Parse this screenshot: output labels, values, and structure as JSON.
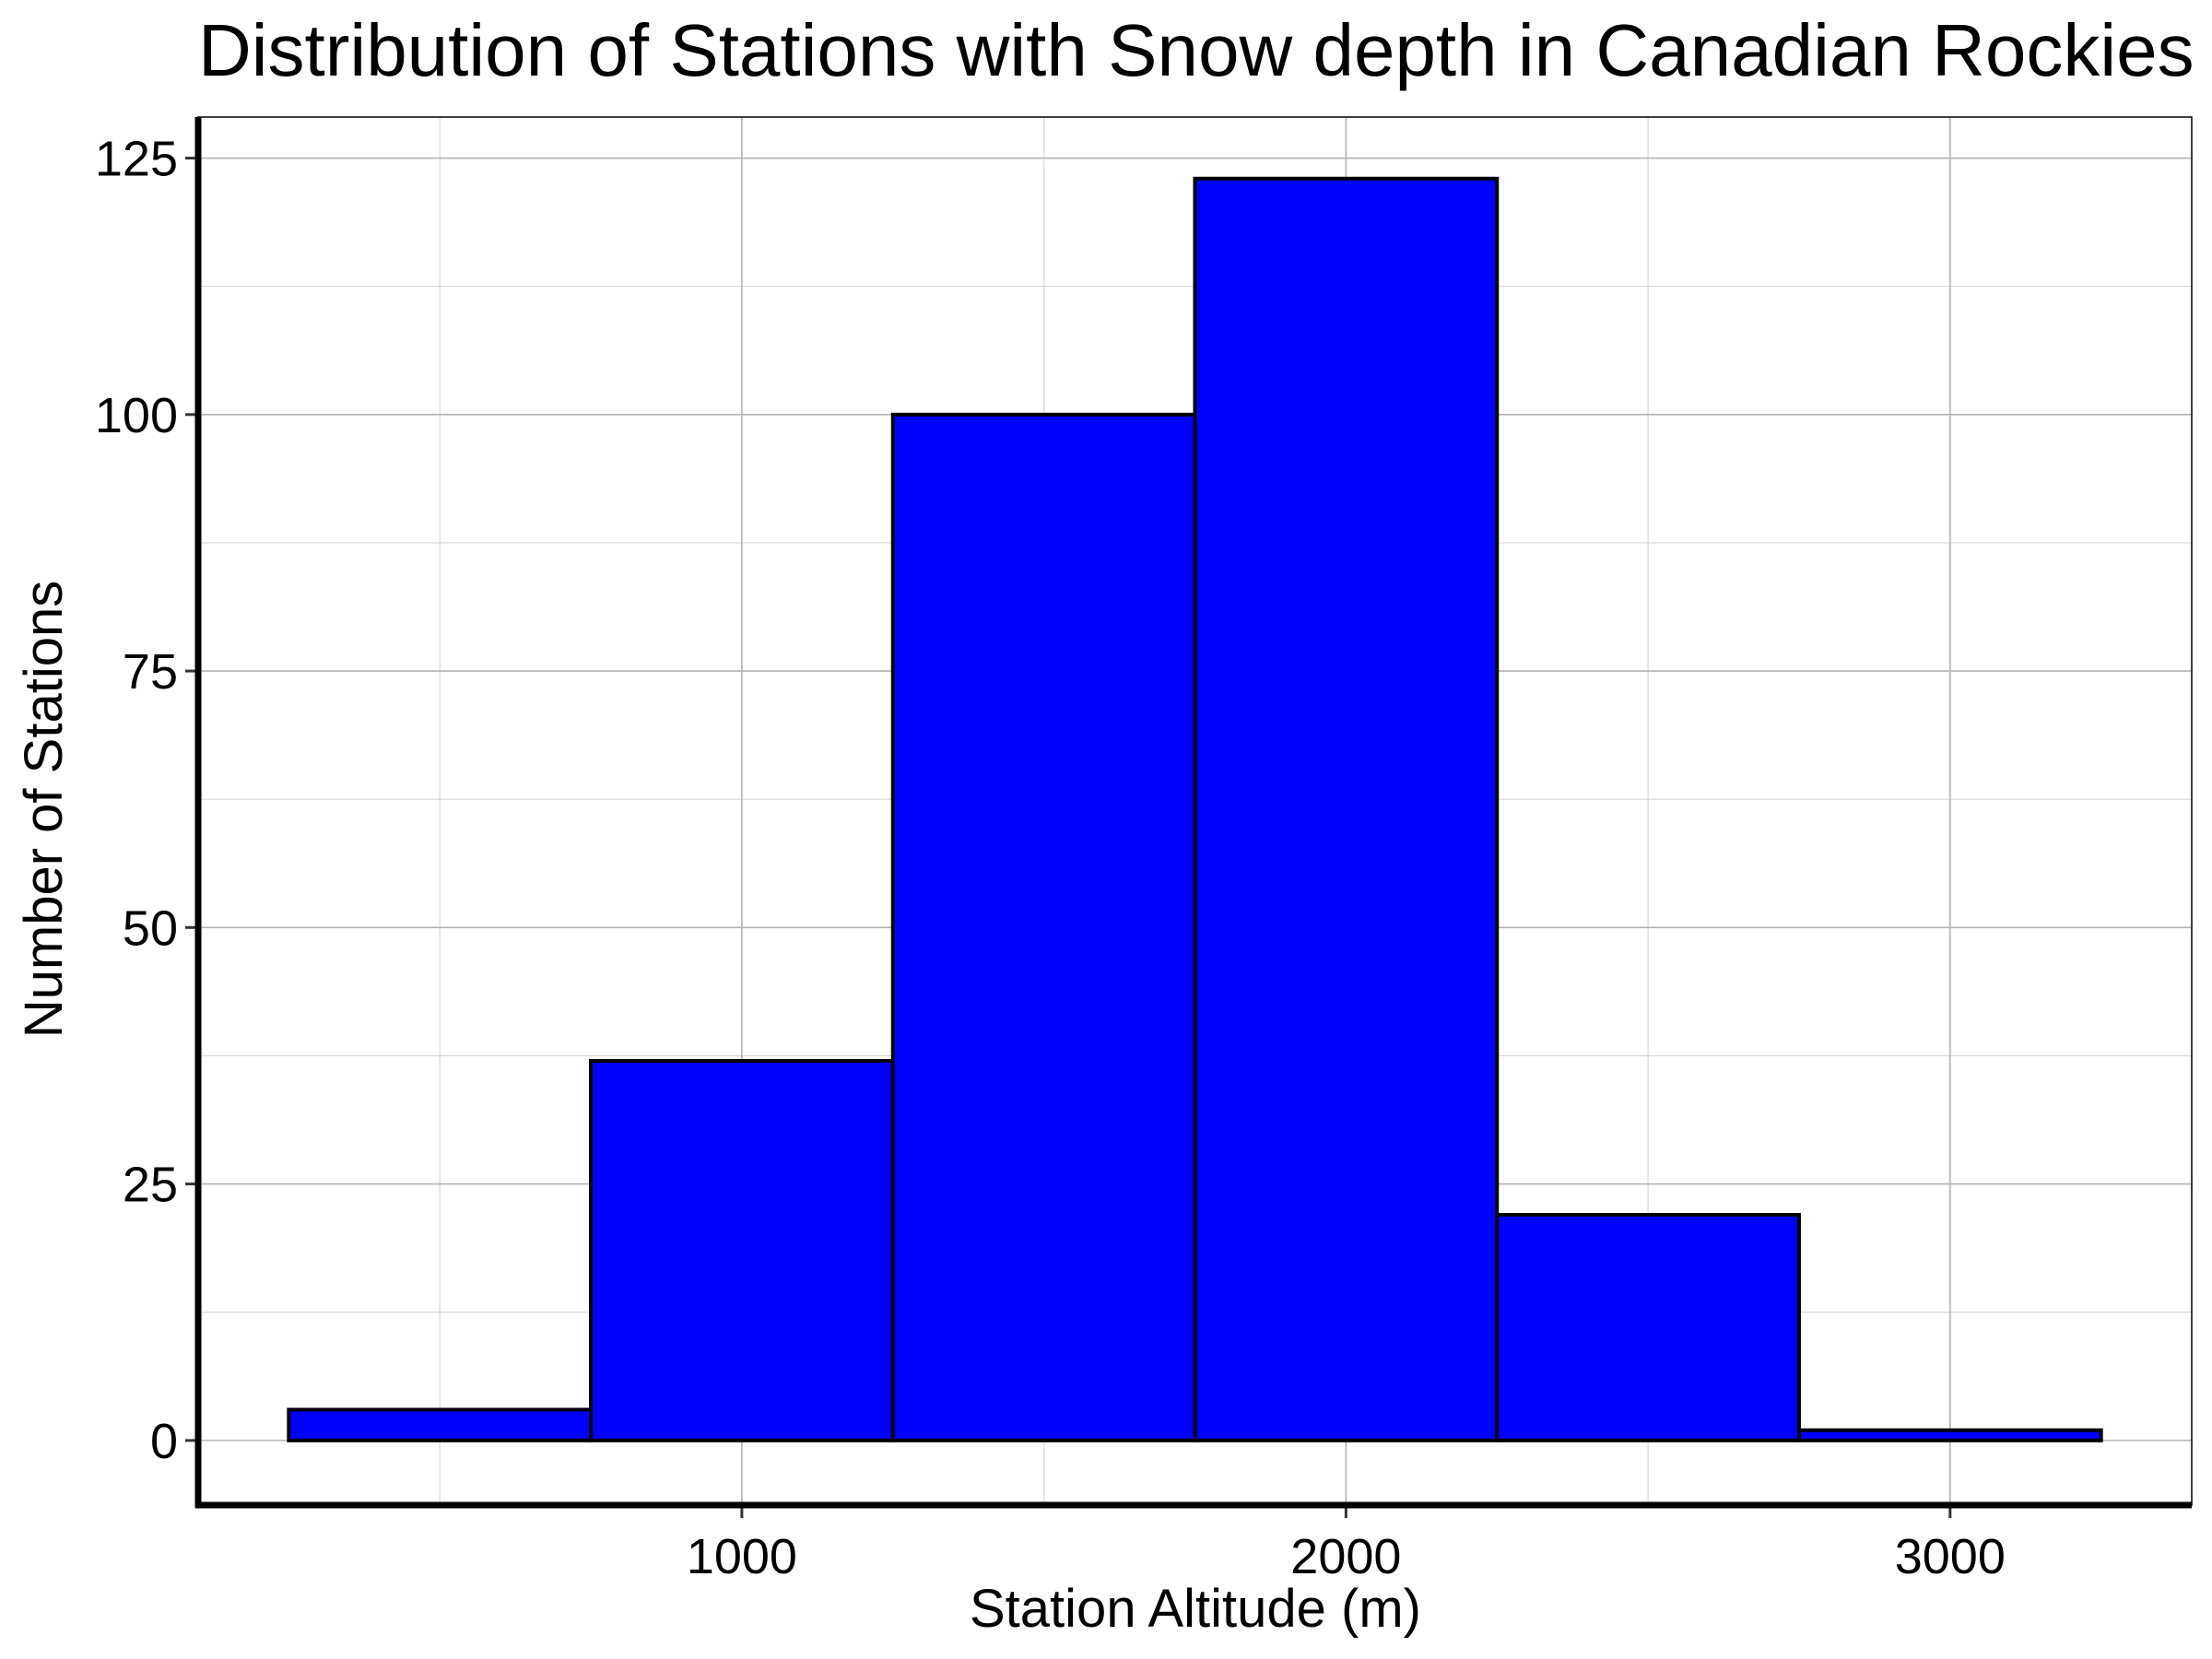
{
  "chart_data": {
    "type": "bar",
    "title": "Distribution of Stations with Snow depth in Canadian Rockies",
    "xlabel": "Station Altitude (m)",
    "ylabel": "Number of Stations",
    "bins": [
      {
        "x0": 250,
        "x1": 750,
        "count": 3
      },
      {
        "x0": 750,
        "x1": 1250,
        "count": 37
      },
      {
        "x0": 1250,
        "x1": 1750,
        "count": 100
      },
      {
        "x0": 1750,
        "x1": 2250,
        "count": 123
      },
      {
        "x0": 2250,
        "x1": 2750,
        "count": 22
      },
      {
        "x0": 2750,
        "x1": 3250,
        "count": 1
      }
    ],
    "xlim": [
      100,
      3400
    ],
    "ylim": [
      -6.3,
      129
    ],
    "xticks": [
      1000,
      2000,
      3000
    ],
    "xtick_labels": [
      "1000",
      "2000",
      "3000"
    ],
    "yticks": [
      0,
      25,
      50,
      75,
      100,
      125
    ],
    "ytick_labels": [
      "0",
      "25",
      "50",
      "75",
      "100",
      "125"
    ],
    "grid": true,
    "legend": "none",
    "bar_color": "#0000ff",
    "bar_edge_color": "#000000"
  }
}
